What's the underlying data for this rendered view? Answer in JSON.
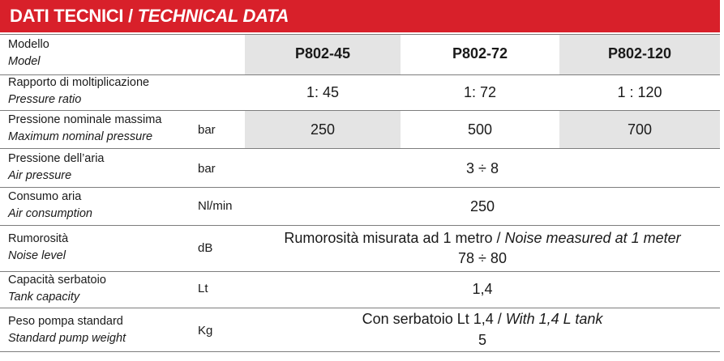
{
  "title": {
    "it": "DATI TECNICI",
    "sep": " / ",
    "en": "TECHNICAL DATA"
  },
  "rows": {
    "model": {
      "it": "Modello",
      "en": "Model",
      "values": [
        "P802-45",
        "P802-72",
        "P802-120"
      ]
    },
    "ratio": {
      "it": "Rapporto di moltiplicazione",
      "en": "Pressure ratio",
      "values": [
        "1: 45",
        "1: 72",
        "1 : 120"
      ]
    },
    "max_pressure": {
      "it": "Pressione nominale massima",
      "en": "Maximum nominal pressure",
      "unit": "bar",
      "values": [
        "250",
        "500",
        "700"
      ]
    },
    "air_pressure": {
      "it": "Pressione dell’aria",
      "en": "Air pressure",
      "unit": "bar",
      "value": "3 ÷ 8"
    },
    "air_consumption": {
      "it": "Consumo aria",
      "en": "Air consumption",
      "unit": "Nl/min",
      "value": "250"
    },
    "noise": {
      "it": "Rumorosità",
      "en": "Noise level",
      "unit": "dB",
      "note_it": "Rumorosità misurata ad 1 metro / ",
      "note_en": "Noise measured at 1 meter",
      "value": "78 ÷ 80"
    },
    "tank": {
      "it": "Capacità serbatoio",
      "en": "Tank capacity",
      "unit": "Lt",
      "value": "1,4"
    },
    "weight": {
      "it": "Peso pompa standard",
      "en": "Standard pump weight",
      "unit": "Kg",
      "note_it": "Con serbatoio Lt 1,4 / ",
      "note_en": "With 1,4 L tank",
      "value": "5"
    }
  },
  "colors": {
    "title_bg": "#d8202a",
    "shade": "#e4e4e4",
    "rule": "#7d7d7d"
  }
}
